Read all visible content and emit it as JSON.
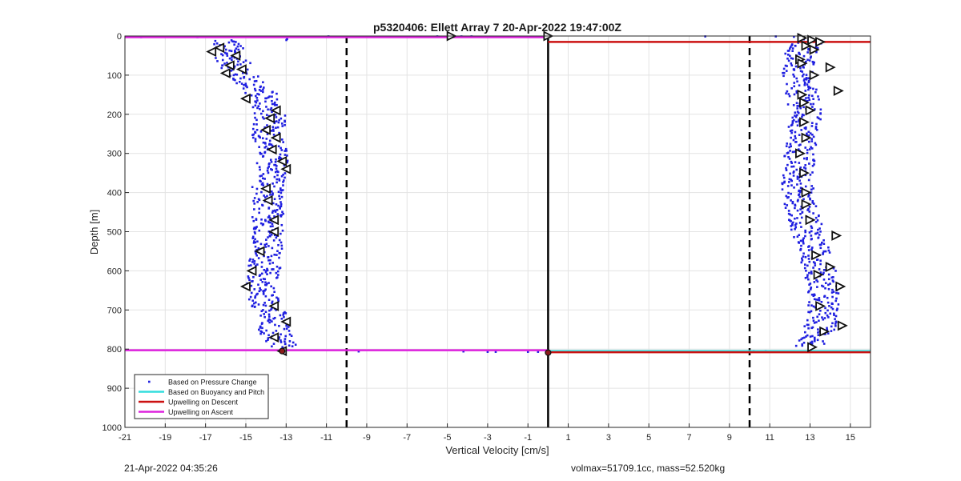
{
  "footer": {
    "timestamp": "21-Apr-2022 04:35:26",
    "vehicle_info": "volmax=51709.1cc, mass=52.520kg"
  },
  "chart_data": {
    "type": "scatter",
    "title": "p5320406: Ellett Array 7 20-Apr-2022 19:47:00Z",
    "xlabel": "Vertical Velocity [cm/s]",
    "ylabel": "Depth [m]",
    "xlim": [
      -21,
      16
    ],
    "ylim": [
      1000,
      0
    ],
    "y_reversed": true,
    "grid": true,
    "xticks": [
      "-21",
      "-19",
      "-17",
      "-15",
      "-13",
      "-11",
      "-9",
      "-7",
      "-5",
      "-3",
      "-1",
      "1",
      "3",
      "5",
      "7",
      "9",
      "11",
      "13",
      "15"
    ],
    "yticks": [
      "0",
      "100",
      "200",
      "300",
      "400",
      "500",
      "600",
      "700",
      "800",
      "900",
      "1000"
    ],
    "legend_position": "bottom-left",
    "legend": [
      {
        "label": "Based on Pressure Change",
        "color": "#1f1fe0",
        "style": "dot"
      },
      {
        "label": "Based on Buoyancy and Pitch",
        "color": "#33dddd",
        "style": "line"
      },
      {
        "label": "Upwelling on Descent",
        "color": "#cc1111",
        "style": "line"
      },
      {
        "label": "Upwelling on Ascent",
        "color": "#dd22dd",
        "style": "line"
      }
    ],
    "reference_lines": {
      "dashed_x": [
        -10,
        10
      ],
      "solid_x": [
        0
      ]
    },
    "upwelling_descent": [
      [
        0,
        15
      ],
      [
        16,
        15
      ],
      [
        0,
        808
      ],
      [
        16,
        808
      ]
    ],
    "upwelling_ascent": [
      [
        -21,
        3
      ],
      [
        0,
        3
      ],
      [
        -21,
        803
      ],
      [
        0,
        803
      ]
    ],
    "buoyancy_pitch": [
      [
        0,
        805
      ],
      [
        16,
        805
      ]
    ],
    "pressure_change_descent_profile": [
      [
        13.0,
        10
      ],
      [
        12.5,
        50
      ],
      [
        12.3,
        100
      ],
      [
        12.6,
        150
      ],
      [
        12.8,
        200
      ],
      [
        12.6,
        250
      ],
      [
        12.5,
        300
      ],
      [
        12.4,
        350
      ],
      [
        12.4,
        400
      ],
      [
        12.6,
        450
      ],
      [
        12.9,
        500
      ],
      [
        13.2,
        550
      ],
      [
        13.5,
        600
      ],
      [
        13.7,
        650
      ],
      [
        13.6,
        700
      ],
      [
        13.5,
        750
      ],
      [
        13.0,
        790
      ]
    ],
    "pressure_change_ascent_profile": [
      [
        -16.0,
        10
      ],
      [
        -15.8,
        50
      ],
      [
        -15.2,
        100
      ],
      [
        -14.2,
        150
      ],
      [
        -13.8,
        200
      ],
      [
        -13.9,
        250
      ],
      [
        -13.7,
        300
      ],
      [
        -13.6,
        350
      ],
      [
        -14.0,
        400
      ],
      [
        -13.9,
        450
      ],
      [
        -13.8,
        500
      ],
      [
        -14.0,
        550
      ],
      [
        -14.1,
        600
      ],
      [
        -14.3,
        650
      ],
      [
        -13.8,
        700
      ],
      [
        -13.6,
        750
      ],
      [
        -13.2,
        790
      ]
    ],
    "pressure_change_surface_points": [
      [
        -20.2,
        3
      ],
      [
        -18.3,
        2
      ],
      [
        -17.4,
        3
      ],
      [
        -10.9,
        1
      ],
      [
        -5.5,
        1
      ],
      [
        -4.3,
        1
      ],
      [
        -3.8,
        1
      ],
      [
        7.8,
        1
      ],
      [
        11.3,
        1
      ],
      [
        12.2,
        2
      ]
    ],
    "pressure_change_bottom_points": [
      [
        -9.4,
        806
      ],
      [
        -4.2,
        806
      ],
      [
        -3.0,
        807
      ],
      [
        -2.6,
        807
      ],
      [
        -1.0,
        807
      ],
      [
        -0.5,
        807
      ],
      [
        0.3,
        806
      ],
      [
        1.2,
        806
      ],
      [
        2.5,
        807
      ],
      [
        6.3,
        807
      ],
      [
        6.6,
        807
      ],
      [
        7.3,
        806
      ],
      [
        8.2,
        806
      ],
      [
        8.6,
        806
      ],
      [
        10.2,
        805
      ],
      [
        10.8,
        805
      ]
    ],
    "buoyancy_markers_ascent": [
      [
        -16.3,
        30
      ],
      [
        -16.7,
        40
      ],
      [
        -15.5,
        50
      ],
      [
        -15.8,
        75
      ],
      [
        -15.2,
        85
      ],
      [
        -16.0,
        95
      ],
      [
        -15.0,
        160
      ],
      [
        -13.5,
        190
      ],
      [
        -13.8,
        210
      ],
      [
        -14.0,
        240
      ],
      [
        -13.5,
        260
      ],
      [
        -13.7,
        290
      ],
      [
        -13.2,
        320
      ],
      [
        -13.0,
        340
      ],
      [
        -14.0,
        390
      ],
      [
        -13.9,
        420
      ],
      [
        -13.6,
        470
      ],
      [
        -13.6,
        500
      ],
      [
        -14.3,
        550
      ],
      [
        -14.7,
        600
      ],
      [
        -15.0,
        640
      ],
      [
        -13.6,
        690
      ],
      [
        -13.0,
        730
      ],
      [
        -13.6,
        770
      ],
      [
        -13.2,
        805
      ]
    ],
    "buoyancy_markers_descent": [
      [
        12.6,
        5
      ],
      [
        13.1,
        10
      ],
      [
        13.5,
        15
      ],
      [
        12.8,
        25
      ],
      [
        13.2,
        35
      ],
      [
        12.5,
        60
      ],
      [
        12.6,
        70
      ],
      [
        14.0,
        80
      ],
      [
        13.2,
        100
      ],
      [
        14.4,
        140
      ],
      [
        12.6,
        150
      ],
      [
        12.7,
        170
      ],
      [
        13.0,
        190
      ],
      [
        12.7,
        220
      ],
      [
        12.8,
        260
      ],
      [
        12.5,
        300
      ],
      [
        12.7,
        350
      ],
      [
        12.8,
        400
      ],
      [
        12.8,
        430
      ],
      [
        13.0,
        470
      ],
      [
        14.3,
        510
      ],
      [
        13.3,
        560
      ],
      [
        14.0,
        590
      ],
      [
        13.4,
        610
      ],
      [
        14.5,
        640
      ],
      [
        13.5,
        690
      ],
      [
        14.6,
        740
      ],
      [
        13.7,
        755
      ],
      [
        13.1,
        795
      ]
    ],
    "bottom_markers": [
      [
        -13.2,
        805
      ],
      [
        0,
        809
      ]
    ],
    "surface_markers": [
      [
        -4.8,
        0
      ],
      [
        0,
        0
      ]
    ]
  }
}
